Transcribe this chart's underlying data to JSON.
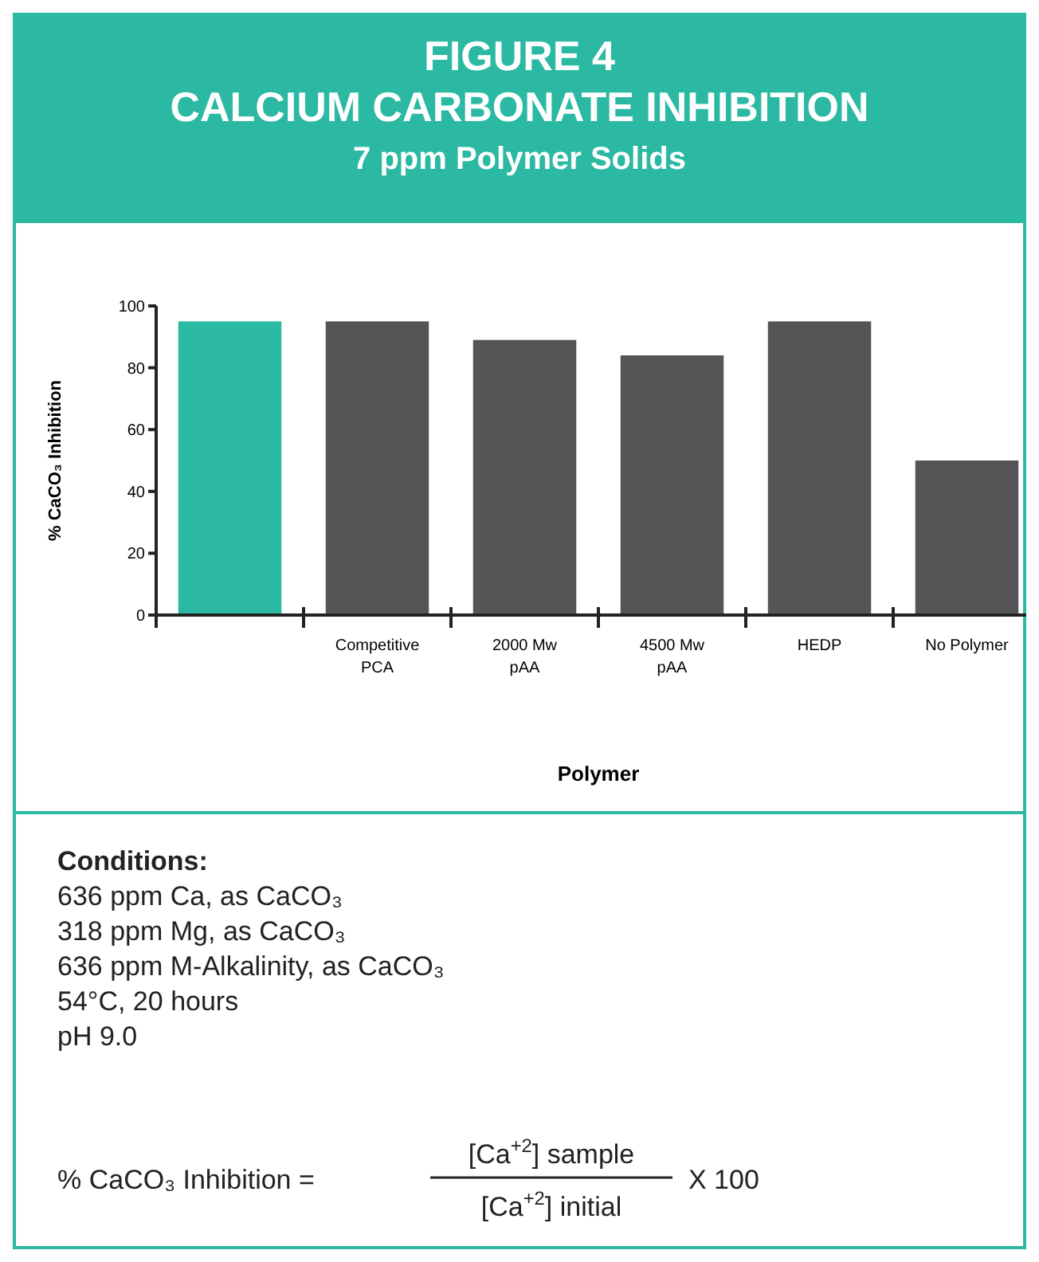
{
  "chart_data": {
    "type": "bar",
    "title": "FIGURE 4\nCALCIUM CARBONATE INHIBITION",
    "subtitle": "7 ppm Polymer Solids",
    "xlabel": "Polymer",
    "ylabel": "% CaCO₃ Inhibition",
    "categories": [
      null,
      "Competitive\nPCA",
      "2000 Mw\npAA",
      "4500 Mw\npAA",
      "HEDP",
      "No Polymer"
    ],
    "values": [
      95,
      95,
      89,
      84,
      95,
      50
    ],
    "colors": [
      "#2bb9a3",
      "#555557",
      "#555557",
      "#555557",
      "#555557",
      "#555557"
    ],
    "ylim": [
      0,
      100
    ],
    "yticks": [
      0,
      20,
      40,
      60,
      80,
      100
    ],
    "grid": false,
    "annotations": [
      "Conditions:",
      "636 ppm Ca, as CaCO₃",
      "318 ppm Mg, as CaCO₃",
      "636 ppm M-Alkalinity, as CaCO₃",
      "54°C, 20 hours",
      "pH 9.0",
      "% CaCO₃ Inhibition  =",
      "[Ca$^{+2}$] sample",
      "[Ca$^{+2}$] initial",
      "X 100"
    ]
  }
}
